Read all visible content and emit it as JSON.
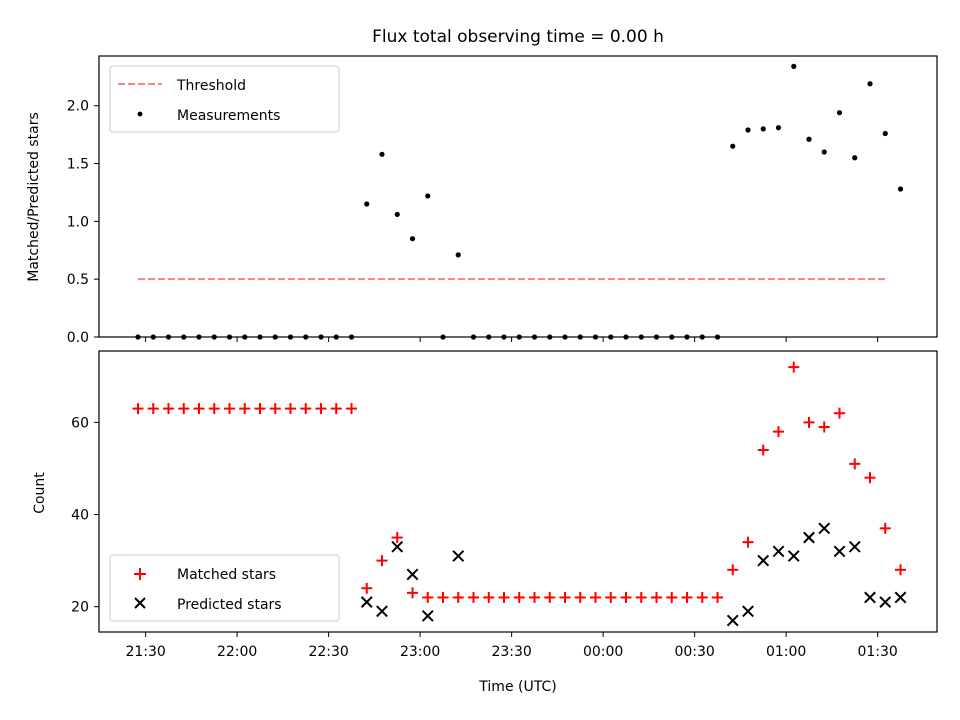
{
  "chart_data": [
    {
      "type": "scatter",
      "title": "Flux total observing time = 0.00 h",
      "ylabel": "Matched/Predicted stars",
      "xlabel": "",
      "ylim": [
        0,
        2.43
      ],
      "yticks": [
        0.0,
        0.5,
        1.0,
        1.5,
        2.0
      ],
      "ytick_labels": [
        "0.0",
        "0.5",
        "1.0",
        "1.5",
        "2.0"
      ],
      "grid": false,
      "legend": "top-left",
      "threshold": {
        "name": "Threshold",
        "value": 0.5,
        "color": "#ff7f7f",
        "x_start": 0,
        "x_end": 49
      },
      "series": [
        {
          "name": "Measurements",
          "color": "#000000",
          "marker": "dot",
          "values": [
            0,
            0,
            0,
            0,
            0,
            0,
            0,
            0,
            0,
            0,
            0,
            0,
            0,
            0,
            0,
            1.15,
            1.58,
            1.06,
            0.85,
            1.22,
            0,
            0.71,
            0,
            0,
            0,
            0,
            0,
            0,
            0,
            0,
            0,
            0,
            0,
            0,
            0,
            0,
            0,
            0,
            0,
            1.65,
            1.79,
            1.8,
            1.81,
            2.34,
            1.71,
            1.6,
            1.94,
            1.55,
            2.19,
            1.76,
            1.28
          ]
        }
      ]
    },
    {
      "type": "scatter",
      "title": "",
      "xlabel": "Time (UTC)",
      "ylabel": "Count",
      "ylim": [
        14.5,
        75.5
      ],
      "yticks": [
        20,
        40,
        60
      ],
      "ytick_labels": [
        "20",
        "40",
        "60"
      ],
      "x_tick_labels": [
        "21:30",
        "22:00",
        "22:30",
        "23:00",
        "23:30",
        "00:00",
        "00:30",
        "01:00",
        "01:30"
      ],
      "grid": false,
      "legend": "bottom-left",
      "series": [
        {
          "name": "Matched stars",
          "color": "#ff0000",
          "marker": "plus",
          "values": [
            63,
            63,
            63,
            63,
            63,
            63,
            63,
            63,
            63,
            63,
            63,
            63,
            63,
            63,
            63,
            24,
            30,
            35,
            23,
            22,
            22,
            22,
            22,
            22,
            22,
            22,
            22,
            22,
            22,
            22,
            22,
            22,
            22,
            22,
            22,
            22,
            22,
            22,
            22,
            28,
            34,
            54,
            58,
            72,
            60,
            59,
            62,
            51,
            48,
            37,
            28
          ]
        },
        {
          "name": "Predicted stars",
          "color": "#000000",
          "marker": "x",
          "index_start": 15,
          "values": [
            21,
            19,
            33,
            27,
            18,
            null,
            31,
            null,
            null,
            null,
            null,
            null,
            null,
            null,
            null,
            null,
            null,
            null,
            null,
            null,
            null,
            null,
            null,
            null,
            17,
            19,
            30,
            32,
            31,
            35,
            37,
            32,
            33,
            22,
            21,
            22
          ]
        }
      ]
    }
  ]
}
